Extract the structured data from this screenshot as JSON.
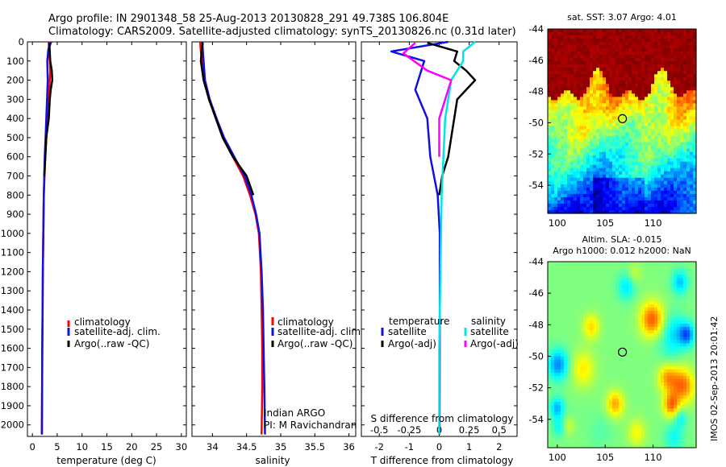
{
  "header": {
    "title_line1": "Argo profile: IN 2901348_58 25-Aug-2013 20130828_291 49.738S 106.804E",
    "title_line2": "Climatology: CARS2009. Satellite-adjusted climatology: synTS_20130826.nc (0.31d later)"
  },
  "colors": {
    "climatology": "#ff0000",
    "satellite": "#1010e0",
    "argo": "#000000",
    "salinity_satellite": "#00e5e5",
    "salinity_argo": "#ff00ff"
  },
  "depth_axis": {
    "ticks": [
      "0",
      "100",
      "200",
      "300",
      "400",
      "500",
      "600",
      "700",
      "800",
      "900",
      "1000",
      "1100",
      "1200",
      "1300",
      "1400",
      "1500",
      "1600",
      "1700",
      "1800",
      "1900",
      "2000"
    ],
    "range": [
      0,
      2060
    ]
  },
  "chart_data": [
    {
      "type": "line",
      "id": "temperature",
      "xlabel": "temperature (deg C)",
      "xlim": [
        -1,
        31
      ],
      "ylim": [
        0,
        2060
      ],
      "xticks": [
        "0",
        "5",
        "10",
        "15",
        "20",
        "25",
        "30"
      ],
      "legend": [
        "climatology",
        "satellite-adj. clim.",
        "Argo(..raw -QC)"
      ],
      "series": [
        {
          "name": "climatology",
          "color": "#ff0000",
          "x": [
            3.3,
            3.3,
            3.5,
            3.6,
            3.5,
            3.3,
            3.0,
            2.8,
            2.6,
            2.45,
            2.3,
            2.2,
            2.1,
            2.05,
            1.98,
            1.95,
            1.9
          ],
          "y": [
            0,
            50,
            100,
            150,
            200,
            300,
            400,
            500,
            600,
            700,
            800,
            1000,
            1200,
            1400,
            1600,
            1800,
            2050
          ]
        },
        {
          "name": "satellite-adj. clim.",
          "color": "#1010e0",
          "x": [
            3.8,
            3.2,
            3.0,
            3.05,
            3.1,
            2.95,
            2.8,
            2.65,
            2.5,
            2.4,
            2.3,
            2.2,
            2.1,
            2.05,
            2.0,
            1.95,
            1.9
          ],
          "y": [
            0,
            40,
            100,
            150,
            200,
            300,
            400,
            500,
            600,
            700,
            800,
            1000,
            1200,
            1400,
            1600,
            1800,
            2050
          ]
        },
        {
          "name": "Argo(..raw -QC)",
          "color": "#000000",
          "x": [
            3.4,
            3.5,
            3.6,
            3.9,
            4.0,
            3.7,
            3.5,
            3.3,
            2.8,
            2.6,
            2.4
          ],
          "y": [
            5,
            50,
            100,
            150,
            200,
            250,
            300,
            400,
            500,
            600,
            700
          ]
        }
      ]
    },
    {
      "type": "line",
      "id": "salinity",
      "xlabel": "salinity",
      "xlim": [
        33.7,
        36.1
      ],
      "ylim": [
        0,
        2060
      ],
      "xticks": [
        "34",
        "34.5",
        "35",
        "35.5",
        "36"
      ],
      "legend": [
        "climatology",
        "satellite-adj. clim.",
        "Argo(..raw -QC)"
      ],
      "annotation": [
        "Indian ARGO",
        "PI: M Ravichandran"
      ],
      "series": [
        {
          "name": "climatology",
          "color": "#ff0000",
          "x": [
            33.82,
            33.83,
            33.85,
            33.88,
            33.95,
            34.05,
            34.15,
            34.3,
            34.45,
            34.55,
            34.63,
            34.68,
            34.71,
            34.72,
            34.73,
            34.73,
            34.72
          ],
          "y": [
            0,
            50,
            100,
            200,
            300,
            400,
            500,
            600,
            700,
            800,
            900,
            1000,
            1200,
            1400,
            1600,
            1800,
            2050
          ]
        },
        {
          "name": "satellite-adj. clim.",
          "color": "#1010e0",
          "x": [
            33.85,
            33.86,
            33.87,
            33.89,
            33.96,
            34.06,
            34.17,
            34.32,
            34.47,
            34.57,
            34.64,
            34.69,
            34.72,
            34.74,
            34.75,
            34.76,
            34.77
          ],
          "y": [
            0,
            50,
            100,
            200,
            300,
            400,
            500,
            600,
            700,
            800,
            900,
            1000,
            1200,
            1400,
            1600,
            1800,
            2050
          ]
        },
        {
          "name": "Argo(..raw -QC)",
          "color": "#000000",
          "x": [
            33.86,
            33.84,
            33.83,
            33.87,
            33.95,
            34.05,
            34.15,
            34.3,
            34.5,
            34.6
          ],
          "y": [
            5,
            50,
            100,
            200,
            300,
            400,
            500,
            600,
            700,
            800
          ]
        }
      ]
    },
    {
      "type": "line",
      "id": "differences",
      "xlabel": "T difference from climatology",
      "xlabel_top": "S difference from climatology",
      "xlim": [
        -2.6,
        2.6
      ],
      "ylim": [
        0,
        2060
      ],
      "xticks": [
        "-2",
        "-1",
        "0",
        "1",
        "2"
      ],
      "xticks_top": [
        "-0.5",
        "-0.25",
        "0",
        "0.25",
        "0.5"
      ],
      "legend_group_left": "temperature",
      "legend_group_right": "salinity",
      "legend": [
        "satellite",
        "Argo(-adj)",
        "satellite",
        "Argo(-adj)"
      ],
      "series": [
        {
          "name": "satellite",
          "group": "temperature",
          "color": "#1010e0",
          "x": [
            0.3,
            -1.6,
            -0.5,
            -0.6,
            -0.8,
            -0.4,
            -0.3,
            -0.05,
            0.02,
            0.02,
            0.01
          ],
          "y": [
            0,
            50,
            100,
            150,
            250,
            400,
            600,
            800,
            1000,
            1400,
            2050
          ]
        },
        {
          "name": "Argo(-adj)",
          "group": "temperature",
          "color": "#000000",
          "x": [
            -0.4,
            0.6,
            0.5,
            0.9,
            1.2,
            0.6,
            0.5,
            0.3,
            0.1,
            0.0
          ],
          "y": [
            5,
            50,
            100,
            150,
            200,
            300,
            400,
            600,
            700,
            800
          ]
        },
        {
          "name": "satellite",
          "group": "salinity",
          "color": "#00e5e5",
          "x": [
            0.3,
            0.2,
            0.2,
            0.1,
            0.05,
            0.02,
            0.01,
            0.0,
            0.0
          ],
          "y": [
            0,
            50,
            100,
            200,
            400,
            800,
            1200,
            1600,
            2050
          ]
        },
        {
          "name": "Argo(-adj)",
          "group": "salinity",
          "color": "#ff00ff",
          "x": [
            -0.2,
            -0.3,
            -0.1,
            0.1,
            0.0,
            0.0
          ],
          "y": [
            5,
            60,
            150,
            200,
            400,
            600
          ]
        }
      ]
    },
    {
      "type": "heatmap",
      "id": "sst_map",
      "title": "sat. SST: 3.07 Argo: 4.01",
      "xlim": [
        99,
        114.5
      ],
      "ylim": [
        -55.8,
        -44
      ],
      "xticks": [
        "100",
        "105",
        "110"
      ],
      "yticks": [
        "-44",
        "-46",
        "-48",
        "-50",
        "-52",
        "-54"
      ],
      "marker": {
        "lon": 106.804,
        "lat": -49.738
      }
    },
    {
      "type": "heatmap",
      "id": "sla_map",
      "title_line1": "Altim. SLA: -0.015",
      "title_line2": "Argo h1000: 0.012 h2000: NaN",
      "xlim": [
        99,
        114.5
      ],
      "ylim": [
        -55.8,
        -44
      ],
      "xticks": [
        "100",
        "105",
        "110"
      ],
      "yticks": [
        "-44",
        "-46",
        "-48",
        "-50",
        "-52",
        "-54"
      ],
      "marker": {
        "lon": 106.804,
        "lat": -49.738
      }
    }
  ],
  "footer": {
    "stamp": "IMOS 02-Sep-2013 20:01:42"
  }
}
